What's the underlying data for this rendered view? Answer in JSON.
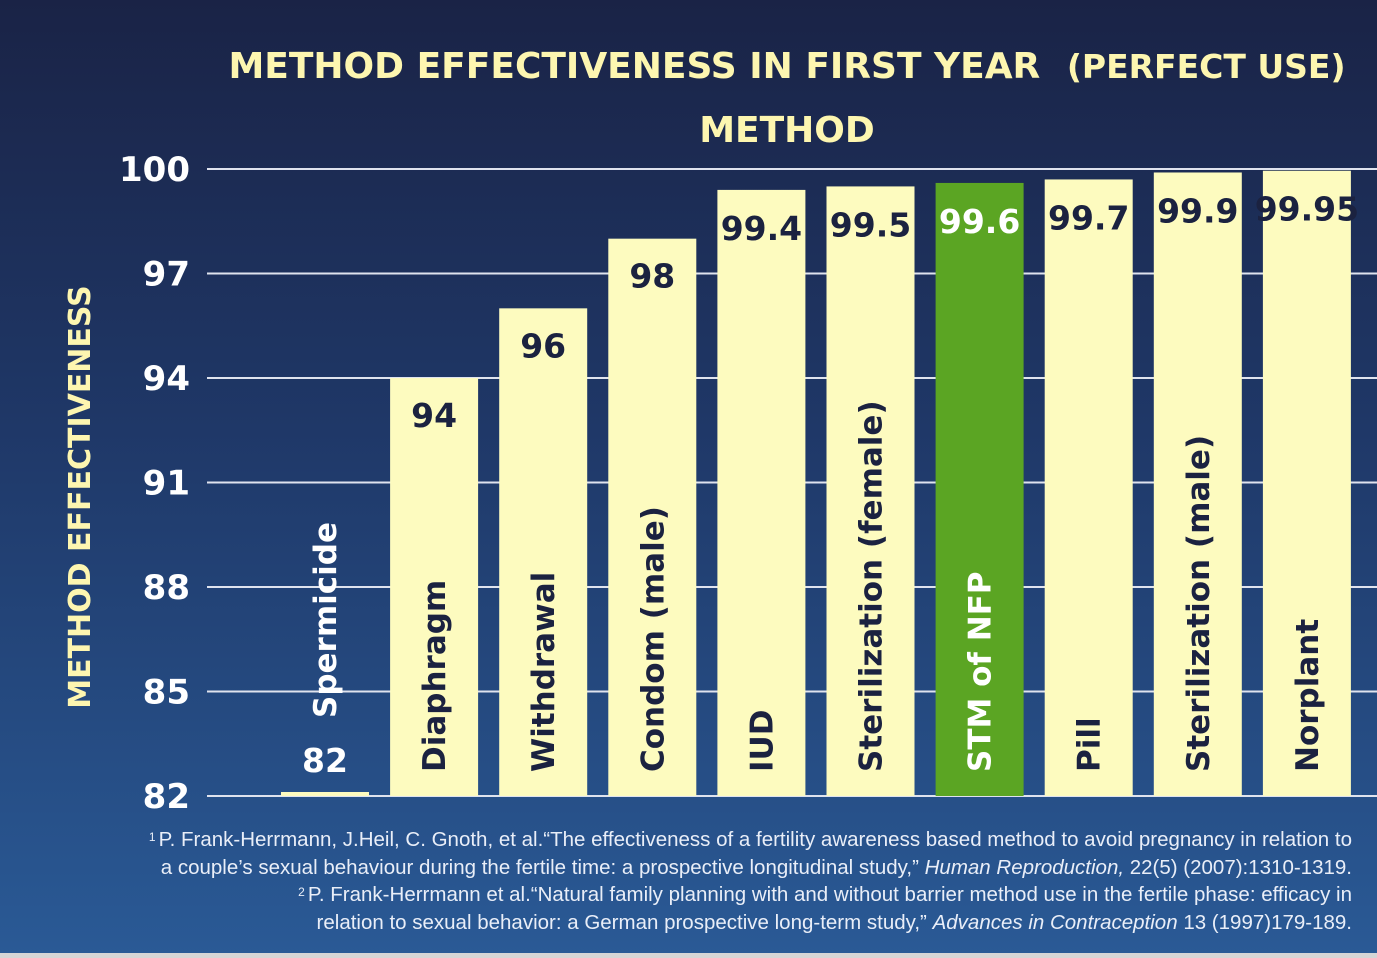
{
  "chart_data": {
    "type": "bar",
    "title": "METHOD EFFECTIVENESS IN FIRST YEAR",
    "title_suffix": "(PERFECT USE)",
    "xlabel": "METHOD",
    "ylabel": "METHOD EFFECTIVENESS",
    "ylim": [
      82,
      100
    ],
    "yticks": [
      "100",
      "97",
      "94",
      "91",
      "88",
      "85",
      "82"
    ],
    "grid": true,
    "categories": [
      "Spermicide",
      "Diaphragm",
      "Withdrawal",
      "Condom (male)",
      "IUD",
      "Sterilization (female)",
      "STM of NFP",
      "Pill",
      "Sterilization (male)",
      "Norplant"
    ],
    "values": [
      82,
      94,
      96,
      98,
      99.4,
      99.5,
      99.6,
      99.7,
      99.9,
      99.95
    ],
    "value_labels": [
      "82",
      "94",
      "96",
      "98",
      "99.4",
      "99.5",
      "99.6",
      "99.7",
      "99.9",
      "99.95"
    ],
    "highlight_index": 6,
    "colors": {
      "bar": "#fdfbbf",
      "highlight": "#5ba523",
      "grid": "#dfe3ee",
      "title": "#fdf6b0",
      "label_dark": "#1b2240",
      "label_light": "#ffffff"
    }
  },
  "references": [
    {
      "num": "1",
      "authors": "P. Frank-Herrmann, J.Heil, C. Gnoth, et al.",
      "title": "“The effectiveness of a fertility awareness based method to avoid pregnancy in relation to",
      "title_cont": "a couple’s sexual behaviour during the fertile time: a prospective longitudinal study,”",
      "journal": "Human Reproduction,",
      "citation": "22(5) (2007):1310-1319."
    },
    {
      "num": "2",
      "authors": "P. Frank-Herrmann et al.",
      "title": "“Natural family planning with and without barrier method use in the fertile phase: efficacy in",
      "title_cont": "relation to sexual behavior: a German prospective long-term study,”",
      "journal": "Advances in Contraception",
      "citation": "13 (1997)179-189."
    }
  ]
}
